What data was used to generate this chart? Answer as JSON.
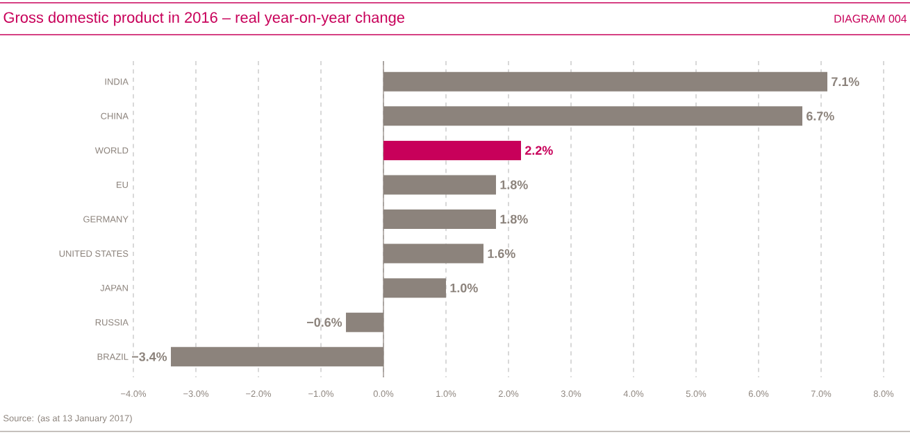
{
  "chart_data": {
    "type": "bar",
    "orientation": "horizontal",
    "title": "Gross domestic product in 2016 – real year-on-year change",
    "annotations": [
      "DIAGRAM 004",
      "Source: (as at 13 January 2017)"
    ],
    "categories": [
      "INDIA",
      "CHINA",
      "WORLD",
      "EU",
      "GERMANY",
      "UNITED STATES",
      "JAPAN",
      "RUSSIA",
      "BRAZIL"
    ],
    "values": [
      7.1,
      6.7,
      2.2,
      1.8,
      1.8,
      1.6,
      1.0,
      -0.6,
      -3.4
    ],
    "colors": [
      "#8c837c",
      "#8c837c",
      "#c8005a",
      "#8c837c",
      "#8c837c",
      "#8c837c",
      "#8c837c",
      "#8c837c",
      "#8c837c"
    ],
    "value_labels": [
      "7.1%",
      "6.7%",
      "2.2%",
      "1.8%",
      "1.8%",
      "1.6%",
      "1.0%",
      "−0.6%",
      "−3.4%"
    ],
    "xlim": [
      -4.0,
      8.0
    ],
    "xticks": [
      {
        "value": -4.0,
        "label": "−4.0%"
      },
      {
        "value": -3.0,
        "label": "−3.0%"
      },
      {
        "value": -2.0,
        "label": "−2.0%"
      },
      {
        "value": -1.0,
        "label": "−1.0%"
      },
      {
        "value": 0.0,
        "label": "0.0%"
      },
      {
        "value": 1.0,
        "label": "1.0%"
      },
      {
        "value": 2.0,
        "label": "2.0%"
      },
      {
        "value": 3.0,
        "label": "3.0%"
      },
      {
        "value": 4.0,
        "label": "4.0%"
      },
      {
        "value": 5.0,
        "label": "5.0%"
      },
      {
        "value": 6.0,
        "label": "6.0%"
      },
      {
        "value": 7.0,
        "label": "7.0%"
      },
      {
        "value": 8.0,
        "label": "8.0%"
      }
    ],
    "grid": "x"
  }
}
